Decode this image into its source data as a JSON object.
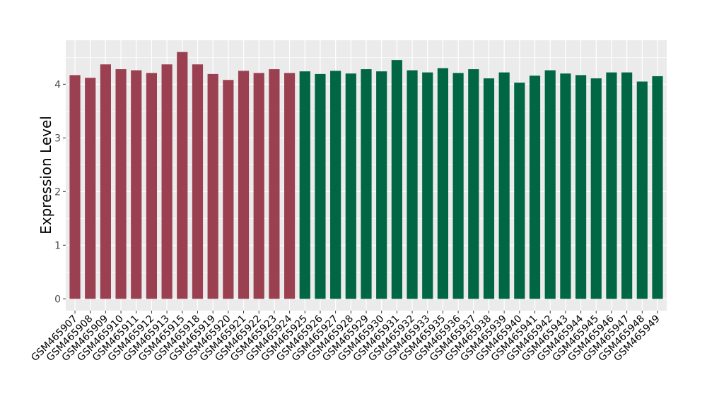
{
  "chart_data": {
    "type": "bar",
    "title": "",
    "xlabel": "",
    "ylabel": "Expression Level",
    "ylim": [
      -0.22,
      4.82
    ],
    "yticks": [
      0,
      1,
      2,
      3,
      4
    ],
    "grid": true,
    "legend": "none",
    "categories": [
      "GSM465907",
      "GSM465908",
      "GSM465909",
      "GSM465910",
      "GSM465911",
      "GSM465912",
      "GSM465913",
      "GSM465915",
      "GSM465918",
      "GSM465919",
      "GSM465920",
      "GSM465921",
      "GSM465922",
      "GSM465923",
      "GSM465924",
      "GSM465925",
      "GSM465926",
      "GSM465927",
      "GSM465928",
      "GSM465929",
      "GSM465930",
      "GSM465931",
      "GSM465932",
      "GSM465933",
      "GSM465935",
      "GSM465936",
      "GSM465937",
      "GSM465938",
      "GSM465939",
      "GSM465940",
      "GSM465941",
      "GSM465942",
      "GSM465943",
      "GSM465944",
      "GSM465945",
      "GSM465946",
      "GSM465947",
      "GSM465948",
      "GSM465949"
    ],
    "values": [
      4.17,
      4.12,
      4.37,
      4.28,
      4.26,
      4.21,
      4.37,
      4.6,
      4.37,
      4.19,
      4.08,
      4.25,
      4.21,
      4.28,
      4.21,
      4.24,
      4.19,
      4.25,
      4.2,
      4.28,
      4.24,
      4.45,
      4.26,
      4.22,
      4.3,
      4.21,
      4.28,
      4.11,
      4.22,
      4.03,
      4.16,
      4.26,
      4.2,
      4.17,
      4.11,
      4.22,
      4.22,
      4.05,
      4.15
    ],
    "groups": [
      0,
      0,
      0,
      0,
      0,
      0,
      0,
      0,
      0,
      0,
      0,
      0,
      0,
      0,
      0,
      1,
      1,
      1,
      1,
      1,
      1,
      1,
      1,
      1,
      1,
      1,
      1,
      1,
      1,
      1,
      1,
      1,
      1,
      1,
      1,
      1,
      1,
      1,
      1
    ],
    "colors": [
      "#9b4050",
      "#006644"
    ],
    "panel_color": "#ebebeb"
  }
}
